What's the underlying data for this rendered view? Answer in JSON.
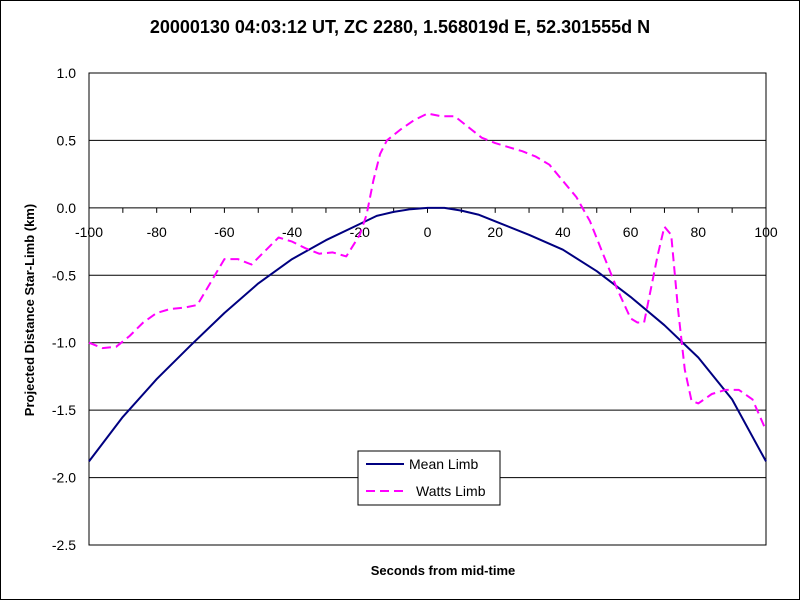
{
  "chart_data": {
    "type": "line",
    "title": "20000130 04:03:12 UT, ZC 2280, 1.568019d E, 52.301555d N",
    "xlabel": "Seconds from mid-time",
    "ylabel": "Projected Distance Star-Limb (km)",
    "xlim": [
      -100,
      100
    ],
    "ylim": [
      -2.5,
      1.0
    ],
    "x_ticks": [
      "-100",
      "-80",
      "-60",
      "-40",
      "-20",
      "0",
      "20",
      "40",
      "60",
      "80",
      "100"
    ],
    "y_ticks": [
      "1.0",
      "0.5",
      "0.0",
      "-0.5",
      "-1.0",
      "-1.5",
      "-2.0",
      "-2.5"
    ],
    "grid": "horizontal",
    "legend_position": "bottom-center",
    "series": [
      {
        "name": "Mean Limb",
        "color": "#000080",
        "style": "solid",
        "x": [
          -100,
          -90,
          -80,
          -70,
          -60,
          -50,
          -40,
          -30,
          -20,
          -15,
          -10,
          -5,
          0,
          5,
          10,
          15,
          20,
          30,
          40,
          50,
          60,
          70,
          80,
          90,
          100
        ],
        "y": [
          -1.88,
          -1.55,
          -1.27,
          -1.02,
          -0.78,
          -0.56,
          -0.38,
          -0.24,
          -0.12,
          -0.06,
          -0.03,
          -0.01,
          0.0,
          0.0,
          -0.02,
          -0.05,
          -0.1,
          -0.2,
          -0.31,
          -0.47,
          -0.66,
          -0.87,
          -1.11,
          -1.42,
          -1.88
        ]
      },
      {
        "name": "Watts Limb",
        "color": "#ff00ff",
        "style": "dashed",
        "x": [
          -100,
          -96,
          -92,
          -88,
          -84,
          -80,
          -76,
          -72,
          -68,
          -64,
          -60,
          -56,
          -52,
          -48,
          -44,
          -40,
          -36,
          -32,
          -28,
          -24,
          -20,
          -18,
          -16,
          -14,
          -12,
          -8,
          -4,
          0,
          4,
          8,
          12,
          16,
          20,
          24,
          28,
          32,
          36,
          40,
          44,
          48,
          52,
          56,
          60,
          62,
          64,
          66,
          68,
          70,
          72,
          74,
          76,
          78,
          80,
          84,
          88,
          92,
          96,
          100
        ],
        "y": [
          -1.0,
          -1.04,
          -1.03,
          -0.95,
          -0.85,
          -0.78,
          -0.75,
          -0.74,
          -0.72,
          -0.55,
          -0.38,
          -0.38,
          -0.42,
          -0.32,
          -0.22,
          -0.25,
          -0.3,
          -0.34,
          -0.33,
          -0.36,
          -0.2,
          -0.05,
          0.2,
          0.4,
          0.5,
          0.58,
          0.65,
          0.7,
          0.68,
          0.68,
          0.6,
          0.52,
          0.48,
          0.45,
          0.42,
          0.38,
          0.32,
          0.2,
          0.08,
          -0.1,
          -0.35,
          -0.6,
          -0.82,
          -0.85,
          -0.85,
          -0.6,
          -0.35,
          -0.14,
          -0.2,
          -0.75,
          -1.2,
          -1.43,
          -1.45,
          -1.38,
          -1.35,
          -1.35,
          -1.42,
          -1.65
        ]
      }
    ]
  }
}
